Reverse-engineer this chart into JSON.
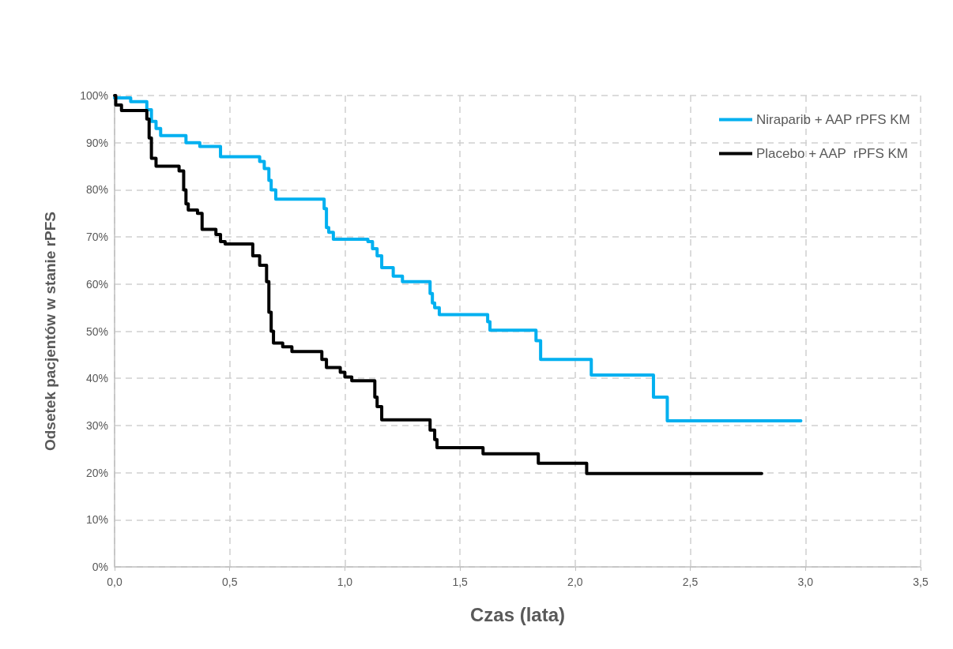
{
  "chart_data": {
    "type": "step",
    "xlabel": "Czas (lata)",
    "ylabel": "Odsetek pacjentów w stanie rPFS",
    "xlim": [
      0,
      3.5
    ],
    "xticks": [
      {
        "value": 0,
        "label": "0,0"
      },
      {
        "value": 0.5,
        "label": "0,5"
      },
      {
        "value": 1,
        "label": "1,0"
      },
      {
        "value": 1.5,
        "label": "1,5"
      },
      {
        "value": 2,
        "label": "2,0"
      },
      {
        "value": 2.5,
        "label": "2,5"
      },
      {
        "value": 3,
        "label": "3,0"
      },
      {
        "value": 3.5,
        "label": "3,5"
      }
    ],
    "ylim": [
      0,
      100
    ],
    "yticks": [
      {
        "value": 0,
        "label": "0%"
      },
      {
        "value": 10,
        "label": "10%"
      },
      {
        "value": 20,
        "label": "20%"
      },
      {
        "value": 30,
        "label": "30%"
      },
      {
        "value": 40,
        "label": "40%"
      },
      {
        "value": 50,
        "label": "50%"
      },
      {
        "value": 60,
        "label": "60%"
      },
      {
        "value": 70,
        "label": "70%"
      },
      {
        "value": 80,
        "label": "80%"
      },
      {
        "value": 90,
        "label": "90%"
      },
      {
        "value": 100,
        "label": "100%"
      }
    ],
    "grid": true,
    "legend": "top right",
    "marker": "none",
    "line_style": "solid",
    "series": [
      {
        "name": "Niraparib + AAP rPFS KM",
        "color": "#00b0f0",
        "x": [
          0,
          0.07,
          0.14,
          0.16,
          0.18,
          0.2,
          0.31,
          0.37,
          0.46,
          0.63,
          0.65,
          0.67,
          0.68,
          0.7,
          0.91,
          0.92,
          0.93,
          0.95,
          1.1,
          1.12,
          1.14,
          1.16,
          1.21,
          1.25,
          1.37,
          1.38,
          1.39,
          1.41,
          1.62,
          1.63,
          1.83,
          1.85,
          2.07,
          2.34,
          2.4,
          2.98
        ],
        "values": [
          99.5,
          98.7,
          97,
          94.5,
          93,
          91.5,
          90,
          89.2,
          87,
          86,
          84.5,
          82,
          80,
          78,
          76,
          72,
          71,
          69.5,
          69,
          67.5,
          66,
          63.5,
          61.7,
          60.5,
          58,
          56,
          55,
          53.5,
          52,
          50.2,
          48,
          44,
          40.7,
          36,
          31,
          31
        ]
      },
      {
        "name": "Placebo + AAP  rPFS KM",
        "color": "#000000",
        "x": [
          0,
          0.005,
          0.03,
          0.14,
          0.15,
          0.16,
          0.18,
          0.28,
          0.3,
          0.31,
          0.32,
          0.36,
          0.38,
          0.44,
          0.46,
          0.48,
          0.6,
          0.63,
          0.66,
          0.67,
          0.68,
          0.69,
          0.73,
          0.77,
          0.9,
          0.92,
          0.98,
          1.0,
          1.03,
          1.13,
          1.14,
          1.16,
          1.37,
          1.39,
          1.4,
          1.6,
          1.84,
          2.05,
          2.81
        ],
        "values": [
          100,
          98,
          96.8,
          95,
          91,
          86.7,
          85,
          84,
          80,
          77,
          75.7,
          75,
          71.6,
          70.5,
          69,
          68.5,
          66,
          64,
          60.5,
          54,
          50,
          47.5,
          46.7,
          45.7,
          44,
          42.3,
          41.3,
          40.3,
          39.5,
          36,
          34,
          31.2,
          29,
          27,
          25.3,
          24,
          22,
          19.8,
          19.8
        ]
      }
    ]
  }
}
